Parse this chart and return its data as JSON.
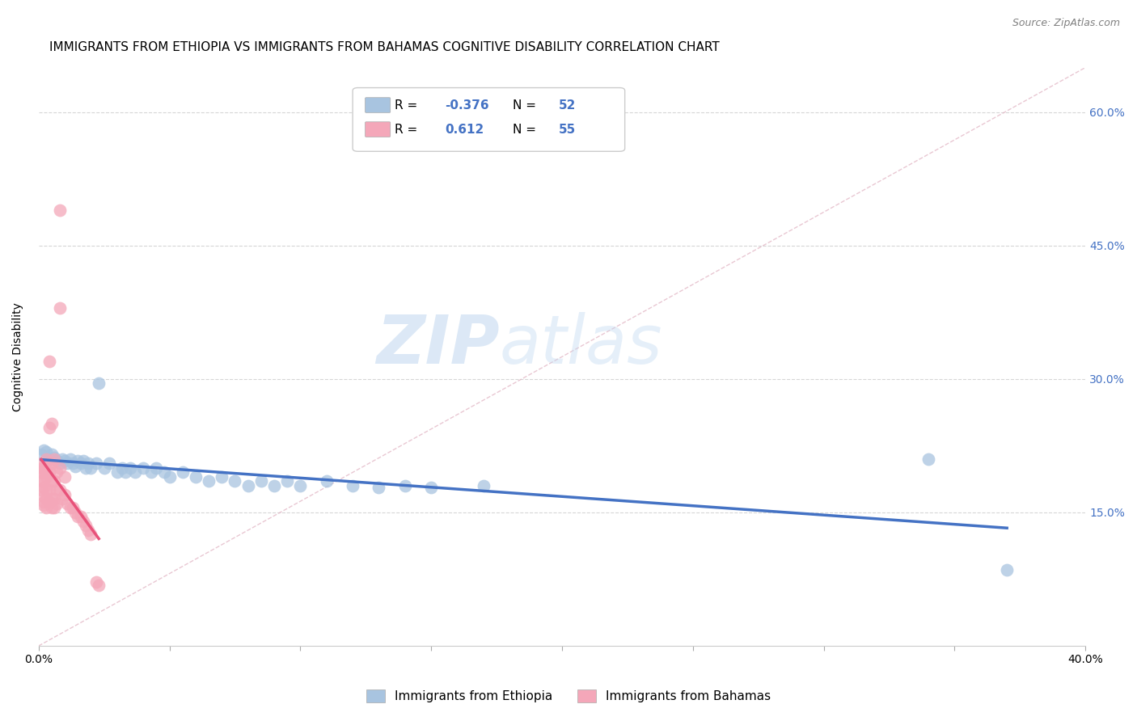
{
  "title": "IMMIGRANTS FROM ETHIOPIA VS IMMIGRANTS FROM BAHAMAS COGNITIVE DISABILITY CORRELATION CHART",
  "source": "Source: ZipAtlas.com",
  "ylabel": "Cognitive Disability",
  "xlim": [
    0.0,
    0.4
  ],
  "ylim": [
    0.0,
    0.65
  ],
  "yticks": [
    0.15,
    0.3,
    0.45,
    0.6
  ],
  "ytick_labels": [
    "15.0%",
    "30.0%",
    "45.0%",
    "60.0%"
  ],
  "xticks": [
    0.0,
    0.05,
    0.1,
    0.15,
    0.2,
    0.25,
    0.3,
    0.35,
    0.4
  ],
  "xtick_labels": [
    "0.0%",
    "",
    "",
    "",
    "",
    "",
    "",
    "",
    "40.0%"
  ],
  "legend_entries": [
    {
      "label_r": "R = ",
      "label_rv": "-0.376",
      "label_n": "   N = ",
      "label_nv": "52",
      "color": "#a8c4e0"
    },
    {
      "label_r": "R =  ",
      "label_rv": "0.612",
      "label_n": "   N = ",
      "label_nv": "55",
      "color": "#f4a7b9"
    }
  ],
  "ethiopia": {
    "name": "Immigrants from Ethiopia",
    "color": "#a8c4e0",
    "line_color": "#4472c4",
    "points": [
      [
        0.001,
        0.215
      ],
      [
        0.002,
        0.22
      ],
      [
        0.003,
        0.218
      ],
      [
        0.004,
        0.21
      ],
      [
        0.005,
        0.215
      ],
      [
        0.006,
        0.212
      ],
      [
        0.007,
        0.208
      ],
      [
        0.008,
        0.205
      ],
      [
        0.009,
        0.21
      ],
      [
        0.01,
        0.208
      ],
      [
        0.011,
        0.205
      ],
      [
        0.012,
        0.21
      ],
      [
        0.013,
        0.205
      ],
      [
        0.014,
        0.202
      ],
      [
        0.015,
        0.208
      ],
      [
        0.016,
        0.205
      ],
      [
        0.017,
        0.208
      ],
      [
        0.018,
        0.2
      ],
      [
        0.019,
        0.205
      ],
      [
        0.02,
        0.2
      ],
      [
        0.022,
        0.205
      ],
      [
        0.023,
        0.295
      ],
      [
        0.025,
        0.2
      ],
      [
        0.027,
        0.205
      ],
      [
        0.03,
        0.195
      ],
      [
        0.032,
        0.2
      ],
      [
        0.033,
        0.195
      ],
      [
        0.035,
        0.2
      ],
      [
        0.037,
        0.195
      ],
      [
        0.04,
        0.2
      ],
      [
        0.043,
        0.195
      ],
      [
        0.045,
        0.2
      ],
      [
        0.048,
        0.195
      ],
      [
        0.05,
        0.19
      ],
      [
        0.055,
        0.195
      ],
      [
        0.06,
        0.19
      ],
      [
        0.065,
        0.185
      ],
      [
        0.07,
        0.19
      ],
      [
        0.075,
        0.185
      ],
      [
        0.08,
        0.18
      ],
      [
        0.085,
        0.185
      ],
      [
        0.09,
        0.18
      ],
      [
        0.095,
        0.185
      ],
      [
        0.1,
        0.18
      ],
      [
        0.11,
        0.185
      ],
      [
        0.12,
        0.18
      ],
      [
        0.13,
        0.178
      ],
      [
        0.14,
        0.18
      ],
      [
        0.15,
        0.178
      ],
      [
        0.17,
        0.18
      ],
      [
        0.34,
        0.21
      ],
      [
        0.37,
        0.085
      ]
    ]
  },
  "bahamas": {
    "name": "Immigrants from Bahamas",
    "color": "#f4a7b9",
    "line_color": "#e8527a",
    "points": [
      [
        0.001,
        0.2
      ],
      [
        0.001,
        0.195
      ],
      [
        0.001,
        0.205
      ],
      [
        0.001,
        0.185
      ],
      [
        0.001,
        0.175
      ],
      [
        0.002,
        0.2
      ],
      [
        0.002,
        0.195
      ],
      [
        0.002,
        0.185
      ],
      [
        0.002,
        0.178
      ],
      [
        0.002,
        0.168
      ],
      [
        0.002,
        0.162
      ],
      [
        0.002,
        0.158
      ],
      [
        0.003,
        0.21
      ],
      [
        0.003,
        0.198
      ],
      [
        0.003,
        0.19
      ],
      [
        0.003,
        0.175
      ],
      [
        0.003,
        0.165
      ],
      [
        0.003,
        0.155
      ],
      [
        0.004,
        0.32
      ],
      [
        0.004,
        0.245
      ],
      [
        0.004,
        0.205
      ],
      [
        0.004,
        0.195
      ],
      [
        0.004,
        0.175
      ],
      [
        0.004,
        0.162
      ],
      [
        0.005,
        0.25
      ],
      [
        0.005,
        0.205
      ],
      [
        0.005,
        0.185
      ],
      [
        0.005,
        0.165
      ],
      [
        0.005,
        0.155
      ],
      [
        0.006,
        0.21
      ],
      [
        0.006,
        0.185
      ],
      [
        0.006,
        0.165
      ],
      [
        0.006,
        0.155
      ],
      [
        0.007,
        0.195
      ],
      [
        0.007,
        0.175
      ],
      [
        0.007,
        0.16
      ],
      [
        0.008,
        0.49
      ],
      [
        0.008,
        0.38
      ],
      [
        0.008,
        0.2
      ],
      [
        0.008,
        0.175
      ],
      [
        0.009,
        0.165
      ],
      [
        0.01,
        0.19
      ],
      [
        0.01,
        0.17
      ],
      [
        0.011,
        0.16
      ],
      [
        0.012,
        0.155
      ],
      [
        0.013,
        0.155
      ],
      [
        0.014,
        0.15
      ],
      [
        0.015,
        0.145
      ],
      [
        0.016,
        0.145
      ],
      [
        0.017,
        0.14
      ],
      [
        0.018,
        0.135
      ],
      [
        0.019,
        0.13
      ],
      [
        0.02,
        0.125
      ],
      [
        0.022,
        0.072
      ],
      [
        0.023,
        0.068
      ]
    ]
  },
  "ref_line": {
    "x0": 0.0,
    "y0": 0.0,
    "x1": 0.4,
    "y1": 0.65
  },
  "watermark_zip": "ZIP",
  "watermark_atlas": "atlas",
  "background_color": "#ffffff",
  "grid_color": "#cccccc",
  "title_fontsize": 11,
  "axis_label_fontsize": 10,
  "tick_fontsize": 10,
  "right_tick_color": "#4472c4"
}
